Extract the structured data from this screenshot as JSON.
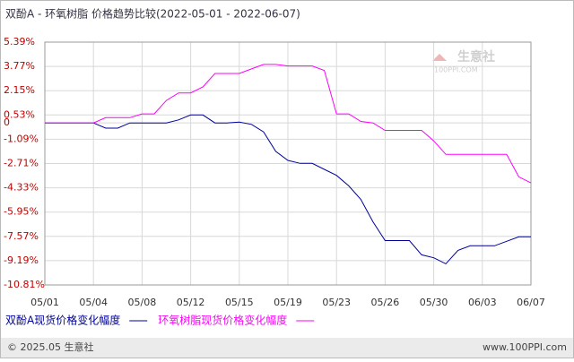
{
  "chart_data": {
    "type": "line",
    "title": "双酚A - 环氧树脂 价格趋势比较(2022-05-01 - 2022-06-07)",
    "watermark": "生意社",
    "watermark_sub": "100PPI.COM",
    "categories": [
      "05/01",
      null,
      null,
      null,
      "05/04",
      null,
      null,
      null,
      "05/08",
      null,
      null,
      null,
      "05/12",
      null,
      null,
      null,
      "05/15",
      null,
      null,
      null,
      "05/19",
      null,
      null,
      null,
      "05/23",
      null,
      null,
      null,
      "05/26",
      null,
      null,
      null,
      "05/30",
      null,
      null,
      null,
      "06/03",
      null,
      null,
      null,
      "06/07"
    ],
    "series": [
      {
        "name": "双酚A现货价格变化幅度",
        "color": "#000099",
        "values": [
          0,
          0,
          0,
          0,
          0,
          -0.35,
          -0.35,
          0,
          0,
          0,
          0,
          0.2,
          0.53,
          0.53,
          0,
          0,
          0.05,
          -0.1,
          -0.6,
          -1.9,
          -2.5,
          -2.7,
          -2.7,
          -3.1,
          -3.5,
          -4.2,
          -5.1,
          -6.6,
          -7.85,
          -7.85,
          -7.85,
          -8.8,
          -9.0,
          -9.4,
          -8.5,
          -8.2,
          -8.2,
          -8.2,
          -7.9,
          -7.6,
          -7.6
        ]
      },
      {
        "name": "环氧树脂现货价格变化幅度",
        "color": "#ff00ff",
        "values": [
          0,
          0,
          0,
          0,
          0,
          0.35,
          0.35,
          0.35,
          0.6,
          0.6,
          1.5,
          2.0,
          2.0,
          2.4,
          3.3,
          3.3,
          3.3,
          3.6,
          3.9,
          3.9,
          3.8,
          3.8,
          3.8,
          3.5,
          0.6,
          0.6,
          0.1,
          0,
          -0.5,
          -0.5,
          -0.5,
          -0.5,
          -1.2,
          -2.1,
          -2.1,
          -2.1,
          -2.1,
          -2.1,
          -2.1,
          -3.6,
          -4.0
        ]
      }
    ],
    "ylim": [
      -10.81,
      5.39
    ],
    "yticks": [
      {
        "value": 5.39,
        "label": "5.39%"
      },
      {
        "value": 3.77,
        "label": "3.77%"
      },
      {
        "value": 2.15,
        "label": "2.15%"
      },
      {
        "value": 0.53,
        "label": "0.53%"
      },
      0,
      {
        "value": -1.09,
        "label": "-1.09%"
      },
      {
        "value": -2.71,
        "label": "-2.71%"
      },
      {
        "value": -4.33,
        "label": "-4.33%"
      },
      {
        "value": -5.95,
        "label": "-5.95%"
      },
      {
        "value": -7.57,
        "label": "-7.57%"
      },
      {
        "value": -9.19,
        "label": "-9.19%"
      },
      {
        "value": -10.81,
        "label": "-10.81%"
      }
    ],
    "grid": true,
    "footer_left": "© 2025.05 生意社",
    "footer_right": "www.100PPI.com"
  }
}
